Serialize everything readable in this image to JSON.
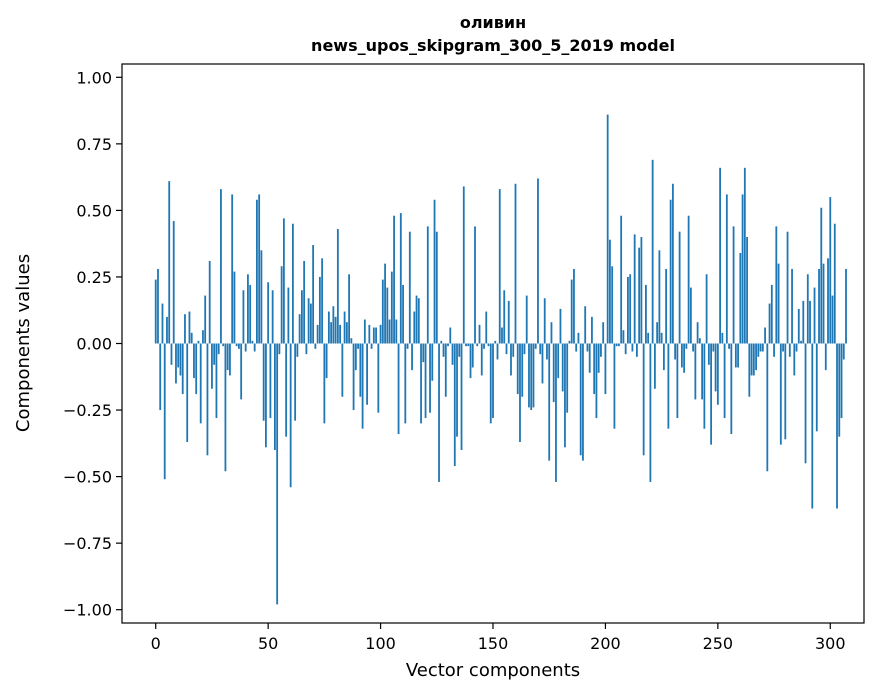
{
  "chart_data": {
    "type": "bar",
    "title_line1": "оливин",
    "title_line2": "news_upos_skipgram_300_5_2019 model",
    "xlabel": "Vector components",
    "ylabel": "Components values",
    "xlim": [
      -15,
      315
    ],
    "ylim": [
      -1.05,
      1.05
    ],
    "xticks": [
      0,
      50,
      100,
      150,
      200,
      250,
      300
    ],
    "yticks": [
      1.0,
      0.75,
      0.5,
      0.25,
      0.0,
      -0.25,
      -0.5,
      -0.75,
      -1.0
    ],
    "ytick_labels": [
      "1.00",
      "0.75",
      "0.50",
      "0.25",
      "0.00",
      "−0.25",
      "−0.50",
      "−0.75",
      "−1.00"
    ],
    "bar_color": "#1f77b4",
    "values": [
      0.24,
      0.28,
      -0.25,
      0.15,
      -0.51,
      0.1,
      0.61,
      -0.08,
      0.46,
      -0.15,
      -0.09,
      -0.12,
      -0.19,
      0.11,
      -0.37,
      0.12,
      0.04,
      -0.13,
      -0.19,
      0.01,
      -0.3,
      0.05,
      0.18,
      -0.42,
      0.31,
      -0.17,
      -0.08,
      -0.28,
      -0.04,
      0.58,
      -0.01,
      -0.48,
      -0.1,
      -0.12,
      0.56,
      0.27,
      -0.01,
      -0.02,
      -0.21,
      0.2,
      -0.03,
      0.26,
      0.22,
      0.01,
      -0.03,
      0.54,
      0.56,
      0.35,
      -0.29,
      -0.39,
      0.23,
      -0.28,
      0.2,
      -0.4,
      -0.98,
      -0.04,
      0.29,
      0.47,
      -0.35,
      0.21,
      -0.54,
      0.45,
      -0.29,
      -0.05,
      0.11,
      0.2,
      0.31,
      -0.04,
      0.17,
      0.15,
      0.37,
      -0.02,
      0.07,
      0.25,
      0.32,
      -0.3,
      -0.13,
      0.12,
      0.08,
      0.14,
      0.1,
      0.43,
      0.07,
      -0.2,
      0.12,
      0.08,
      0.26,
      0.02,
      -0.25,
      -0.1,
      -0.02,
      -0.2,
      -0.32,
      0.09,
      -0.23,
      0.07,
      -0.02,
      0.06,
      0.06,
      -0.26,
      0.07,
      0.24,
      0.3,
      0.21,
      0.09,
      0.27,
      0.48,
      0.09,
      -0.34,
      0.49,
      0.22,
      -0.3,
      -0.02,
      0.42,
      -0.1,
      0.12,
      0.18,
      0.17,
      -0.3,
      -0.07,
      -0.28,
      0.44,
      -0.26,
      -0.14,
      0.54,
      0.42,
      -0.52,
      0.01,
      -0.05,
      -0.2,
      -0.01,
      0.06,
      -0.08,
      -0.46,
      -0.35,
      -0.05,
      -0.4,
      0.59,
      -0.01,
      -0.01,
      -0.13,
      -0.09,
      0.44,
      -0.01,
      0.07,
      -0.12,
      -0.02,
      0.12,
      -0.01,
      -0.3,
      -0.28,
      0.01,
      -0.06,
      0.58,
      0.06,
      0.2,
      -0.04,
      0.16,
      -0.12,
      -0.05,
      0.6,
      -0.19,
      -0.37,
      -0.2,
      -0.04,
      0.18,
      -0.24,
      -0.25,
      -0.24,
      -0.02,
      0.62,
      -0.04,
      -0.15,
      0.17,
      -0.06,
      -0.44,
      0.08,
      -0.22,
      -0.52,
      -0.13,
      0.13,
      -0.18,
      -0.39,
      -0.26,
      0.01,
      0.24,
      0.28,
      -0.03,
      0.04,
      -0.42,
      -0.44,
      0.14,
      -0.03,
      -0.11,
      0.1,
      -0.19,
      -0.28,
      -0.11,
      -0.05,
      0.08,
      -0.19,
      0.86,
      0.39,
      0.29,
      -0.32,
      -0.01,
      -0.01,
      0.48,
      0.05,
      -0.04,
      0.25,
      0.26,
      -0.03,
      0.41,
      -0.05,
      0.36,
      0.4,
      -0.42,
      0.22,
      0.04,
      -0.52,
      0.69,
      -0.17,
      0.08,
      0.35,
      0.04,
      -0.1,
      0.28,
      -0.32,
      0.54,
      0.6,
      -0.06,
      -0.28,
      0.42,
      -0.09,
      -0.11,
      -0.02,
      0.48,
      0.21,
      -0.03,
      -0.21,
      0.08,
      0.02,
      -0.21,
      -0.32,
      0.26,
      -0.08,
      -0.38,
      -0.03,
      -0.18,
      -0.23,
      0.66,
      0.04,
      -0.28,
      0.56,
      -0.02,
      -0.34,
      0.44,
      -0.09,
      -0.09,
      0.34,
      0.56,
      0.66,
      0.4,
      -0.2,
      -0.12,
      -0.12,
      -0.1,
      -0.05,
      -0.03,
      -0.03,
      0.06,
      -0.48,
      0.15,
      0.22,
      -0.05,
      0.44,
      0.3,
      -0.38,
      -0.03,
      -0.36,
      0.42,
      -0.05,
      0.28,
      -0.12,
      -0.03,
      0.13,
      0.01,
      0.16,
      -0.45,
      0.26,
      0.16,
      -0.62,
      0.21,
      -0.33,
      0.28,
      0.51,
      0.3,
      -0.1,
      0.32,
      0.55,
      0.18,
      0.45,
      -0.62,
      -0.35,
      -0.28,
      -0.06,
      0.28
    ]
  }
}
